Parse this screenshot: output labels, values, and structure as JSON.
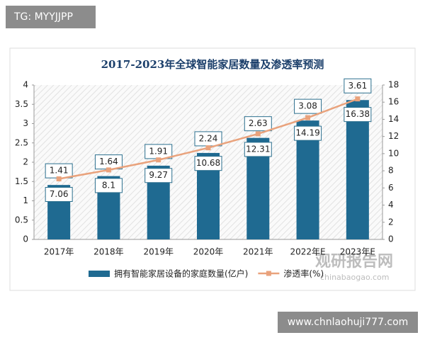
{
  "watermark": "TG: MYYJJPP",
  "footer_watermark": "www.chnlaohuji777.com",
  "logo": {
    "name": "观研报告网",
    "url": "chinabaogao.com"
  },
  "chart_data": {
    "type": "bar",
    "title": "2017-2023年全球智能家居数量及渗透率预测",
    "categories": [
      "2017年",
      "2018年",
      "2019年",
      "2020年",
      "2021年",
      "2022年E",
      "2023年E"
    ],
    "series": [
      {
        "name": "拥有智能家居设备的家庭数量(亿户)",
        "type": "bar",
        "color": "#1f6a91",
        "values": [
          1.41,
          1.64,
          1.91,
          2.24,
          2.63,
          3.08,
          3.61
        ]
      },
      {
        "name": "渗透率(%)",
        "type": "line",
        "axis": "y2",
        "color": "#e9a27c",
        "values": [
          7.06,
          8.1,
          9.27,
          10.68,
          12.31,
          14.19,
          16.38
        ]
      }
    ],
    "ylim": [
      0,
      4
    ],
    "yticks": [
      0,
      0.5,
      1,
      1.5,
      2,
      2.5,
      3,
      3.5,
      4
    ],
    "y2lim": [
      0,
      18
    ],
    "y2ticks": [
      0,
      2,
      4,
      6,
      8,
      10,
      12,
      14,
      16,
      18
    ],
    "grid": false
  }
}
